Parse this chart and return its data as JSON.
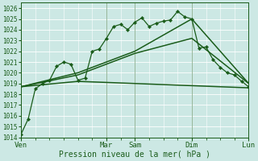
{
  "xlabel": "Pression niveau de la mer( hPa )",
  "ylim": [
    1014,
    1026.5
  ],
  "xlim": [
    0,
    96
  ],
  "bg_color": "#cce8e4",
  "grid_color": "#ffffff",
  "line_color": "#1a5c1a",
  "xtick_labels": [
    "Ven",
    "",
    "Mar",
    "Sam",
    "",
    "Dim",
    "",
    "Lun"
  ],
  "xtick_major_positions": [
    0,
    36,
    48,
    72,
    96
  ],
  "xtick_major_labels": [
    "Ven",
    "Mar",
    "Sam",
    "Dim",
    "Lun"
  ],
  "ytick_values": [
    1014,
    1015,
    1016,
    1017,
    1018,
    1019,
    1020,
    1021,
    1022,
    1023,
    1024,
    1025,
    1026
  ],
  "line1_x": [
    0,
    3,
    6,
    9,
    12,
    15,
    18,
    21,
    24,
    27,
    30,
    33,
    36,
    39,
    42,
    45,
    48,
    51,
    54,
    57,
    60,
    63,
    66,
    69,
    72,
    75,
    78,
    81,
    84,
    87,
    90,
    93,
    96
  ],
  "line1_y": [
    1014.3,
    1015.7,
    1018.5,
    1019.0,
    1019.3,
    1020.6,
    1021.0,
    1020.8,
    1019.3,
    1019.5,
    1022.0,
    1022.2,
    1023.2,
    1024.3,
    1024.5,
    1024.0,
    1024.7,
    1025.1,
    1024.3,
    1024.6,
    1024.8,
    1024.9,
    1025.7,
    1025.2,
    1025.0,
    1022.3,
    1022.4,
    1021.2,
    1020.5,
    1020.0,
    1019.8,
    1019.2,
    1018.7
  ],
  "line2_x": [
    0,
    24,
    48,
    72,
    96
  ],
  "line2_y": [
    1018.7,
    1019.2,
    1019.0,
    1018.8,
    1018.6
  ],
  "line3_x": [
    0,
    24,
    48,
    72,
    96
  ],
  "line3_y": [
    1018.7,
    1019.8,
    1021.8,
    1023.2,
    1019.0
  ],
  "line4_x": [
    0,
    24,
    48,
    72,
    96
  ],
  "line4_y": [
    1018.7,
    1020.0,
    1022.0,
    1025.0,
    1019.0
  ]
}
